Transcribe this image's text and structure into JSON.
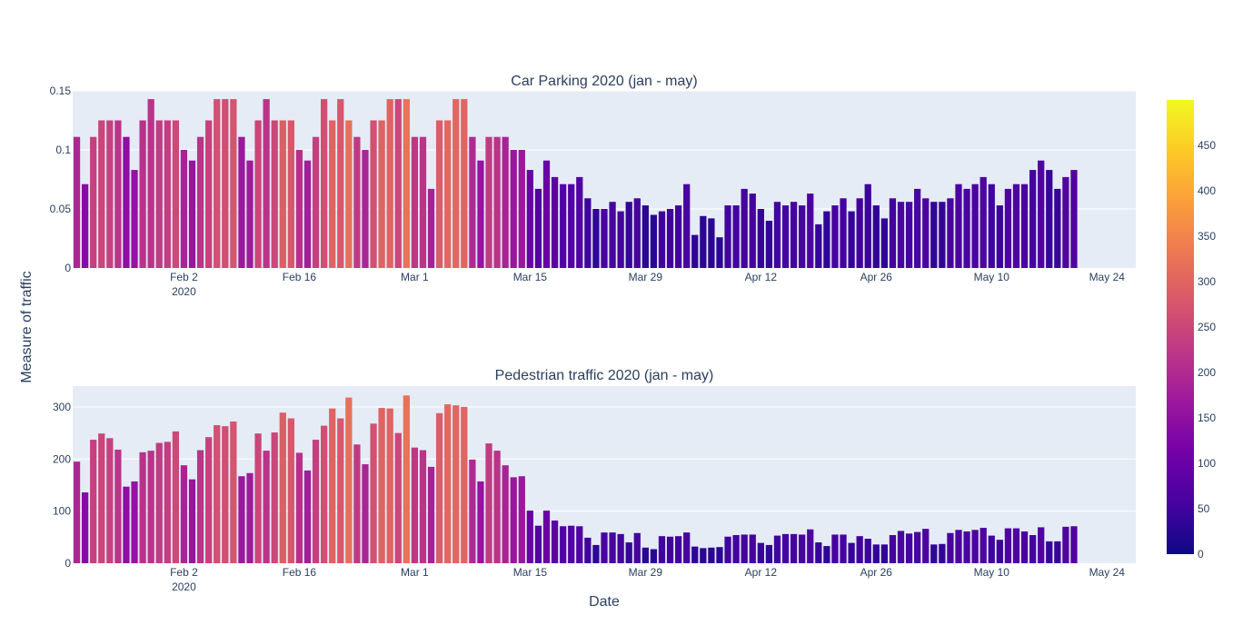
{
  "chart_data": {
    "type": "bar",
    "shared": {
      "x_start_date": "2020-01-20",
      "x_range": [
        "2020-01-19T12:00",
        "2020-05-27T12:00"
      ],
      "xtick_labels": [
        "Feb 2",
        "Feb 16",
        "Mar 1",
        "Mar 15",
        "Mar 29",
        "Apr 12",
        "Apr 26",
        "May 10",
        "May 24"
      ],
      "xtick_dates": [
        "2020-02-02",
        "2020-02-16",
        "2020-03-01",
        "2020-03-15",
        "2020-03-29",
        "2020-04-12",
        "2020-04-26",
        "2020-05-10",
        "2020-05-24"
      ],
      "xtick_year_label": "2020",
      "xlabel": "Date",
      "ylabel": "Measure of traffic",
      "colorscale": "plasma",
      "color_values_source": "pedestrian",
      "colorbar": {
        "range": [
          0,
          500
        ],
        "ticks": [
          0,
          50,
          100,
          150,
          200,
          250,
          300,
          350,
          400,
          450
        ]
      },
      "plot_bg": "#e5ecf6",
      "grid": true
    },
    "charts": [
      {
        "title": "Car Parking 2020 (jan - may)",
        "ylim": [
          0,
          0.15
        ],
        "yticks": [
          0,
          0.05,
          0.1,
          0.15
        ],
        "ytick_labels": [
          "0",
          "0.05",
          "0.1",
          "0.15"
        ],
        "values": [
          0.111,
          0.071,
          0.111,
          0.125,
          0.125,
          0.125,
          0.111,
          0.083,
          0.125,
          0.143,
          0.125,
          0.125,
          0.125,
          0.1,
          0.091,
          0.111,
          0.125,
          0.143,
          0.143,
          0.143,
          0.111,
          0.091,
          0.125,
          0.143,
          0.125,
          0.125,
          0.125,
          0.1,
          0.091,
          0.111,
          0.143,
          0.125,
          0.143,
          0.125,
          0.111,
          0.1,
          0.125,
          0.125,
          0.143,
          0.143,
          0.143,
          0.111,
          0.111,
          0.067,
          0.125,
          0.125,
          0.143,
          0.143,
          0.111,
          0.091,
          0.111,
          0.111,
          0.111,
          0.1,
          0.1,
          0.083,
          0.067,
          0.091,
          0.077,
          0.071,
          0.071,
          0.077,
          0.059,
          0.05,
          0.05,
          0.056,
          0.048,
          0.056,
          0.059,
          0.053,
          0.045,
          0.048,
          0.05,
          0.053,
          0.071,
          0.028,
          0.044,
          0.042,
          0.026,
          0.053,
          0.053,
          0.067,
          0.063,
          0.05,
          0.04,
          0.056,
          0.053,
          0.056,
          0.053,
          0.063,
          0.037,
          0.048,
          0.053,
          0.059,
          0.048,
          0.059,
          0.071,
          0.053,
          0.042,
          0.059,
          0.056,
          0.056,
          0.067,
          0.059,
          0.056,
          0.056,
          0.059,
          0.071,
          0.067,
          0.071,
          0.077,
          0.071,
          0.053,
          0.067,
          0.071,
          0.071,
          0.083,
          0.091,
          0.083,
          0.067,
          0.077,
          0.083
        ]
      },
      {
        "title": "Pedestrian traffic 2020 (jan - may)",
        "ylim": [
          0,
          340
        ],
        "yticks": [
          0,
          100,
          200,
          300
        ],
        "ytick_labels": [
          "0",
          "100",
          "200",
          "300"
        ],
        "values": [
          195,
          136,
          237,
          249,
          240,
          218,
          147,
          157,
          213,
          216,
          231,
          233,
          253,
          188,
          161,
          217,
          242,
          265,
          263,
          272,
          167,
          173,
          249,
          216,
          251,
          289,
          278,
          212,
          178,
          237,
          264,
          297,
          278,
          318,
          228,
          190,
          268,
          298,
          297,
          250,
          322,
          222,
          217,
          185,
          288,
          305,
          303,
          300,
          199,
          157,
          230,
          216,
          188,
          165,
          167,
          101,
          72,
          101,
          82,
          71,
          72,
          71,
          49,
          35,
          59,
          59,
          56,
          40,
          58,
          30,
          27,
          52,
          51,
          52,
          59,
          32,
          29,
          30,
          31,
          51,
          54,
          55,
          55,
          39,
          35,
          53,
          56,
          56,
          55,
          65,
          40,
          33,
          55,
          55,
          39,
          52,
          47,
          36,
          36,
          54,
          62,
          57,
          60,
          66,
          36,
          37,
          58,
          64,
          61,
          64,
          68,
          53,
          45,
          67,
          67,
          61,
          54,
          69,
          42,
          42,
          70,
          71
        ]
      }
    ]
  }
}
